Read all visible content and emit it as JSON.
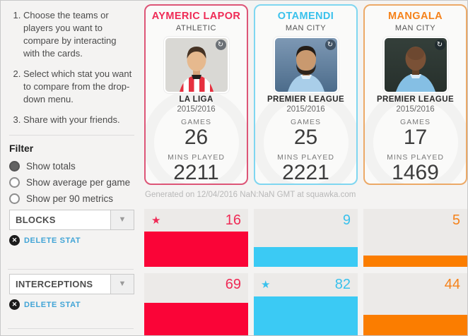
{
  "page": {
    "generated_note": "Generated on 12/04/2016 NaN:NaN GMT at squawka.com"
  },
  "icons": {
    "star": "★",
    "dropdown_arrow": "▼",
    "delete_x": "✕",
    "badge": "↻"
  },
  "sidebar": {
    "instructions": [
      "Choose the teams or players you want to compare by interacting with the cards.",
      "Select which stat you want to compare from the drop-down menu.",
      "Share with your friends."
    ],
    "filter": {
      "title": "Filter",
      "options": [
        {
          "label": "Show totals",
          "selected": true
        },
        {
          "label": "Show average per game",
          "selected": false
        },
        {
          "label": "Show per 90 metrics",
          "selected": false
        }
      ]
    },
    "stat_selectors": [
      {
        "value": "BLOCKS",
        "delete_label": "DELETE STAT"
      },
      {
        "value": "INTERCEPTIONS",
        "delete_label": "DELETE STAT"
      }
    ]
  },
  "cards": [
    {
      "name": "AYMERIC LAPOR",
      "team": "ATHLETIC",
      "league": "LA LIGA",
      "season": "2015/2016",
      "games_label": "GAMES",
      "games": "26",
      "mins_label": "MINS PLAYED",
      "mins": "2211",
      "accent": "#ef2a55",
      "bar_color": "#fa0437",
      "border_color": "#dd5577"
    },
    {
      "name": "OTAMENDI",
      "team": "MAN CITY",
      "league": "PREMIER LEAGUE",
      "season": "2015/2016",
      "games_label": "GAMES",
      "games": "25",
      "mins_label": "MINS PLAYED",
      "mins": "2221",
      "accent": "#39c1ec",
      "bar_color": "#3bcaf4",
      "border_color": "#7fd6f0"
    },
    {
      "name": "MANGALA",
      "team": "MAN CITY",
      "league": "PREMIER LEAGUE",
      "season": "2015/2016",
      "games_label": "GAMES",
      "games": "17",
      "mins_label": "MINS PLAYED",
      "mins": "1469",
      "accent": "#f5821a",
      "bar_color": "#fb7d00",
      "border_color": "#eca967"
    }
  ],
  "stat_rows": [
    {
      "stat": "BLOCKS",
      "values": [
        16,
        9,
        5
      ],
      "leader_index": 0
    },
    {
      "stat": "INTERCEPTIONS",
      "values": [
        69,
        82,
        44
      ],
      "leader_index": 1
    }
  ]
}
